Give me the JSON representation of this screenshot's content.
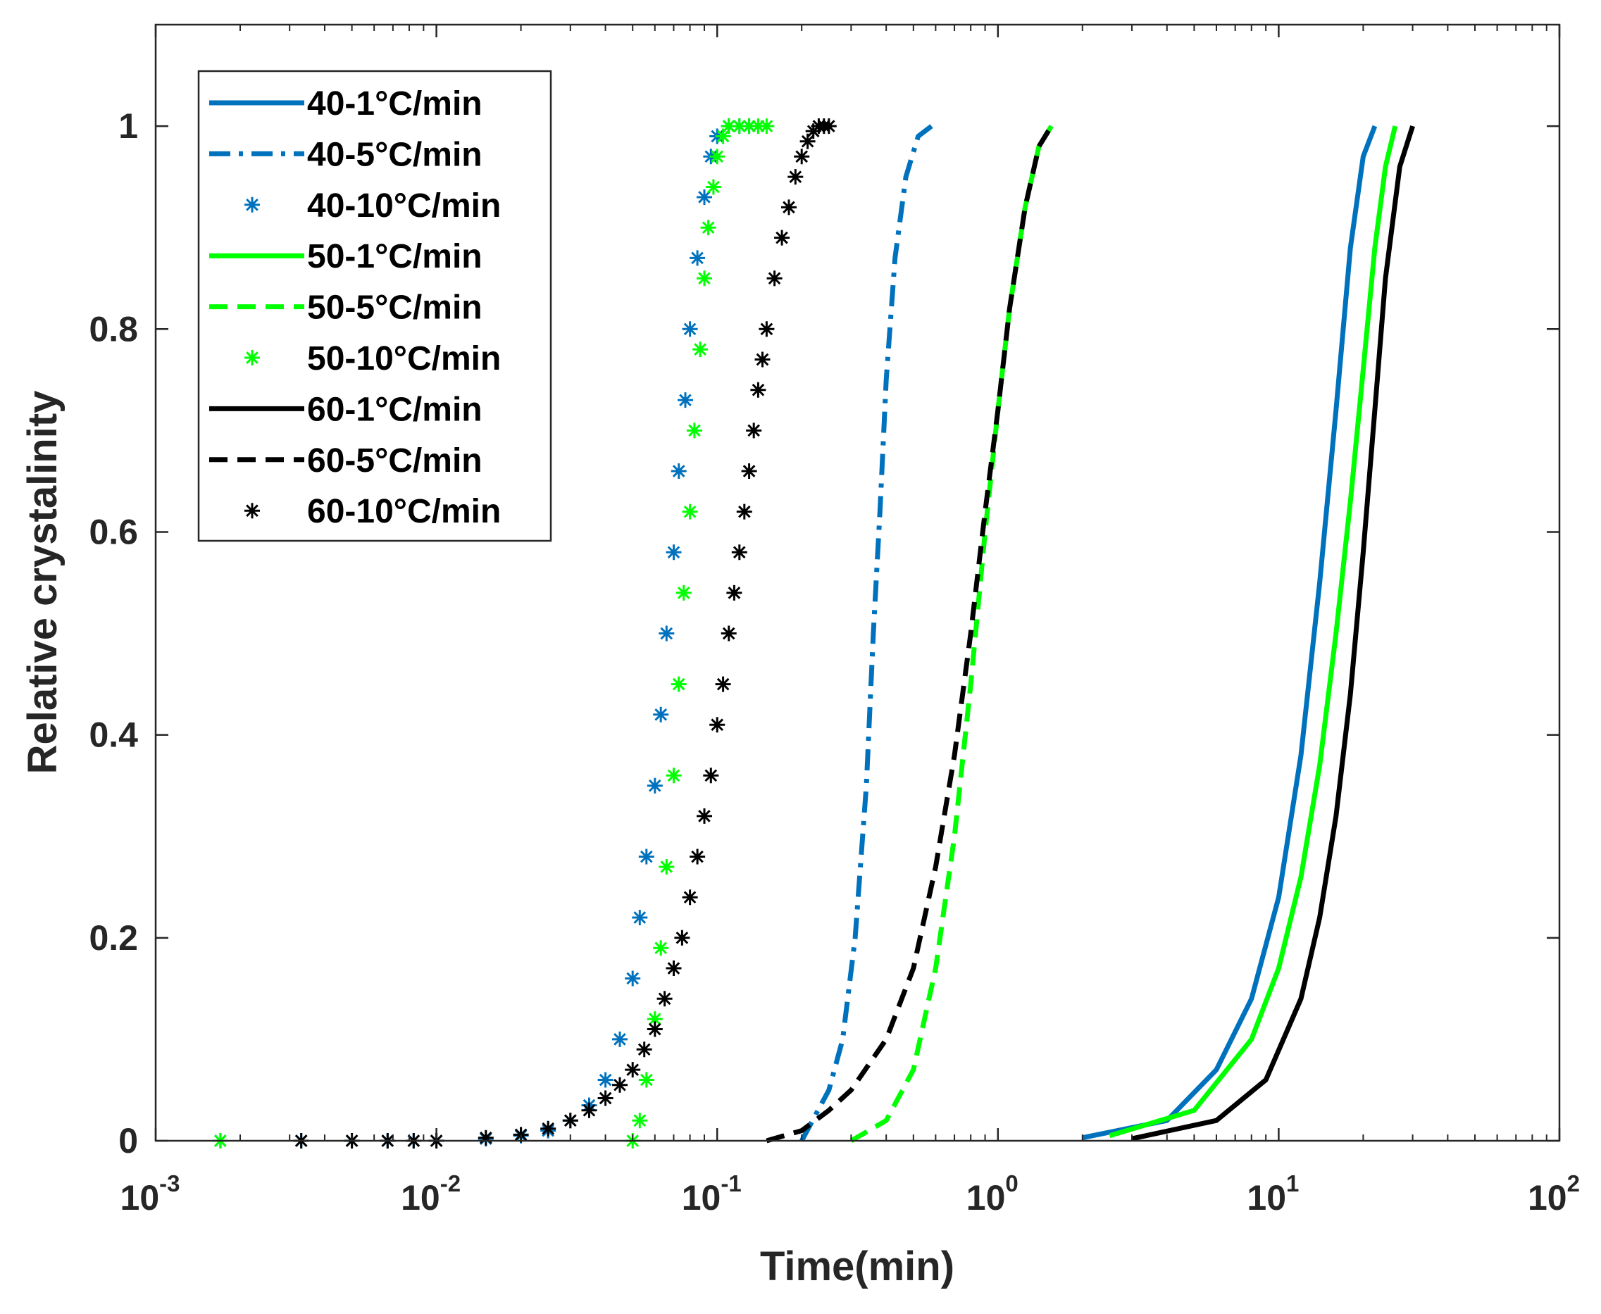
{
  "chart_data": {
    "type": "line",
    "xlabel": "Time(min)",
    "ylabel": "Relative crystalinity",
    "xscale": "log",
    "xlim": [
      0.001,
      100
    ],
    "ylim": [
      0,
      1.1
    ],
    "x_ticks": [
      {
        "base": "10",
        "exp": "-3",
        "value": 0.001
      },
      {
        "base": "10",
        "exp": "-2",
        "value": 0.01
      },
      {
        "base": "10",
        "exp": "-1",
        "value": 0.1
      },
      {
        "base": "10",
        "exp": "0",
        "value": 1
      },
      {
        "base": "10",
        "exp": "1",
        "value": 10
      },
      {
        "base": "10",
        "exp": "2",
        "value": 100
      }
    ],
    "y_ticks": [
      {
        "label": "0",
        "value": 0
      },
      {
        "label": "0.2",
        "value": 0.2
      },
      {
        "label": "0.4",
        "value": 0.4
      },
      {
        "label": "0.6",
        "value": 0.6
      },
      {
        "label": "0.8",
        "value": 0.8
      },
      {
        "label": "1",
        "value": 1
      }
    ],
    "grid": false,
    "legend_position": "top-left",
    "colors": {
      "blue": "#0072BD",
      "green": "#00FF00",
      "black": "#000000"
    },
    "series": [
      {
        "name": "40-1°C/min",
        "color": "#0072BD",
        "style": "solid",
        "x": [
          2,
          4,
          6,
          8,
          10,
          12,
          14,
          16,
          18,
          20,
          22
        ],
        "y": [
          0.003,
          0.02,
          0.07,
          0.14,
          0.24,
          0.38,
          0.55,
          0.72,
          0.88,
          0.97,
          1.0
        ]
      },
      {
        "name": "40-5°C/min",
        "color": "#0072BD",
        "style": "dashdot",
        "x": [
          0.2,
          0.25,
          0.28,
          0.31,
          0.34,
          0.36,
          0.38,
          0.4,
          0.43,
          0.47,
          0.52,
          0.58
        ],
        "y": [
          0.0,
          0.05,
          0.1,
          0.2,
          0.35,
          0.5,
          0.62,
          0.75,
          0.87,
          0.95,
          0.99,
          1.0
        ]
      },
      {
        "name": "40-10°C/min",
        "color": "#0072BD",
        "style": "markers",
        "x": [
          0.0017,
          0.0033,
          0.005,
          0.0067,
          0.0083,
          0.01,
          0.015,
          0.02,
          0.025,
          0.03,
          0.035,
          0.04,
          0.045,
          0.05,
          0.053,
          0.056,
          0.06,
          0.063,
          0.066,
          0.07,
          0.073,
          0.077,
          0.08,
          0.085,
          0.09,
          0.095,
          0.1,
          0.11,
          0.12,
          0.13
        ],
        "y": [
          0.0,
          0.0,
          0.0,
          0.0,
          0.0,
          0.0,
          0.002,
          0.005,
          0.01,
          0.02,
          0.035,
          0.06,
          0.1,
          0.16,
          0.22,
          0.28,
          0.35,
          0.42,
          0.5,
          0.58,
          0.66,
          0.73,
          0.8,
          0.87,
          0.93,
          0.97,
          0.99,
          1.0,
          1.0,
          1.0
        ]
      },
      {
        "name": "50-1°C/min",
        "color": "#00FF00",
        "style": "solid",
        "x": [
          2.5,
          5,
          8,
          10,
          12,
          14,
          16,
          18,
          20,
          22,
          24,
          26
        ],
        "y": [
          0.005,
          0.03,
          0.1,
          0.17,
          0.26,
          0.37,
          0.5,
          0.63,
          0.76,
          0.88,
          0.96,
          1.0
        ]
      },
      {
        "name": "50-5°C/min",
        "color": "#00FF00",
        "style": "dashed",
        "x": [
          0.3,
          0.4,
          0.5,
          0.6,
          0.7,
          0.8,
          0.9,
          1.0,
          1.1,
          1.25,
          1.4,
          1.55
        ],
        "y": [
          0.0,
          0.02,
          0.07,
          0.17,
          0.3,
          0.45,
          0.6,
          0.72,
          0.82,
          0.92,
          0.98,
          1.0
        ]
      },
      {
        "name": "50-10°C/min",
        "color": "#00FF00",
        "style": "markers",
        "x": [
          0.0017,
          0.05,
          0.053,
          0.056,
          0.06,
          0.063,
          0.066,
          0.07,
          0.073,
          0.076,
          0.08,
          0.083,
          0.087,
          0.09,
          0.093,
          0.097,
          0.1,
          0.105,
          0.11,
          0.12,
          0.13,
          0.14,
          0.15
        ],
        "y": [
          0.0,
          0.0,
          0.02,
          0.06,
          0.12,
          0.19,
          0.27,
          0.36,
          0.45,
          0.54,
          0.62,
          0.7,
          0.78,
          0.85,
          0.9,
          0.94,
          0.97,
          0.99,
          1.0,
          1.0,
          1.0,
          1.0,
          1.0
        ]
      },
      {
        "name": "60-1°C/min",
        "color": "#000000",
        "style": "solid",
        "x": [
          3,
          6,
          9,
          12,
          14,
          16,
          18,
          20,
          22,
          24,
          27,
          30
        ],
        "y": [
          0.002,
          0.02,
          0.06,
          0.14,
          0.22,
          0.32,
          0.44,
          0.58,
          0.72,
          0.85,
          0.96,
          1.0
        ]
      },
      {
        "name": "60-5°C/min",
        "color": "#000000",
        "style": "dashed",
        "x": [
          0.15,
          0.2,
          0.25,
          0.3,
          0.4,
          0.5,
          0.6,
          0.7,
          0.8,
          0.9,
          1.0,
          1.1,
          1.25,
          1.4,
          1.55
        ],
        "y": [
          0.0,
          0.01,
          0.03,
          0.05,
          0.1,
          0.17,
          0.27,
          0.38,
          0.5,
          0.62,
          0.72,
          0.82,
          0.92,
          0.98,
          1.0
        ]
      },
      {
        "name": "60-10°C/min",
        "color": "#000000",
        "style": "markers",
        "x": [
          0.0033,
          0.005,
          0.0067,
          0.0083,
          0.01,
          0.015,
          0.02,
          0.025,
          0.03,
          0.035,
          0.04,
          0.045,
          0.05,
          0.055,
          0.06,
          0.065,
          0.07,
          0.075,
          0.08,
          0.085,
          0.09,
          0.095,
          0.1,
          0.105,
          0.11,
          0.115,
          0.12,
          0.125,
          0.13,
          0.135,
          0.14,
          0.145,
          0.15,
          0.16,
          0.17,
          0.18,
          0.19,
          0.2,
          0.21,
          0.22,
          0.23,
          0.24,
          0.25
        ],
        "y": [
          0.0,
          0.0,
          0.0,
          0.0,
          0.0,
          0.003,
          0.006,
          0.012,
          0.02,
          0.03,
          0.042,
          0.055,
          0.07,
          0.09,
          0.11,
          0.14,
          0.17,
          0.2,
          0.24,
          0.28,
          0.32,
          0.36,
          0.41,
          0.45,
          0.5,
          0.54,
          0.58,
          0.62,
          0.66,
          0.7,
          0.74,
          0.77,
          0.8,
          0.85,
          0.89,
          0.92,
          0.95,
          0.97,
          0.985,
          0.995,
          1.0,
          1.0,
          1.0
        ]
      }
    ]
  }
}
